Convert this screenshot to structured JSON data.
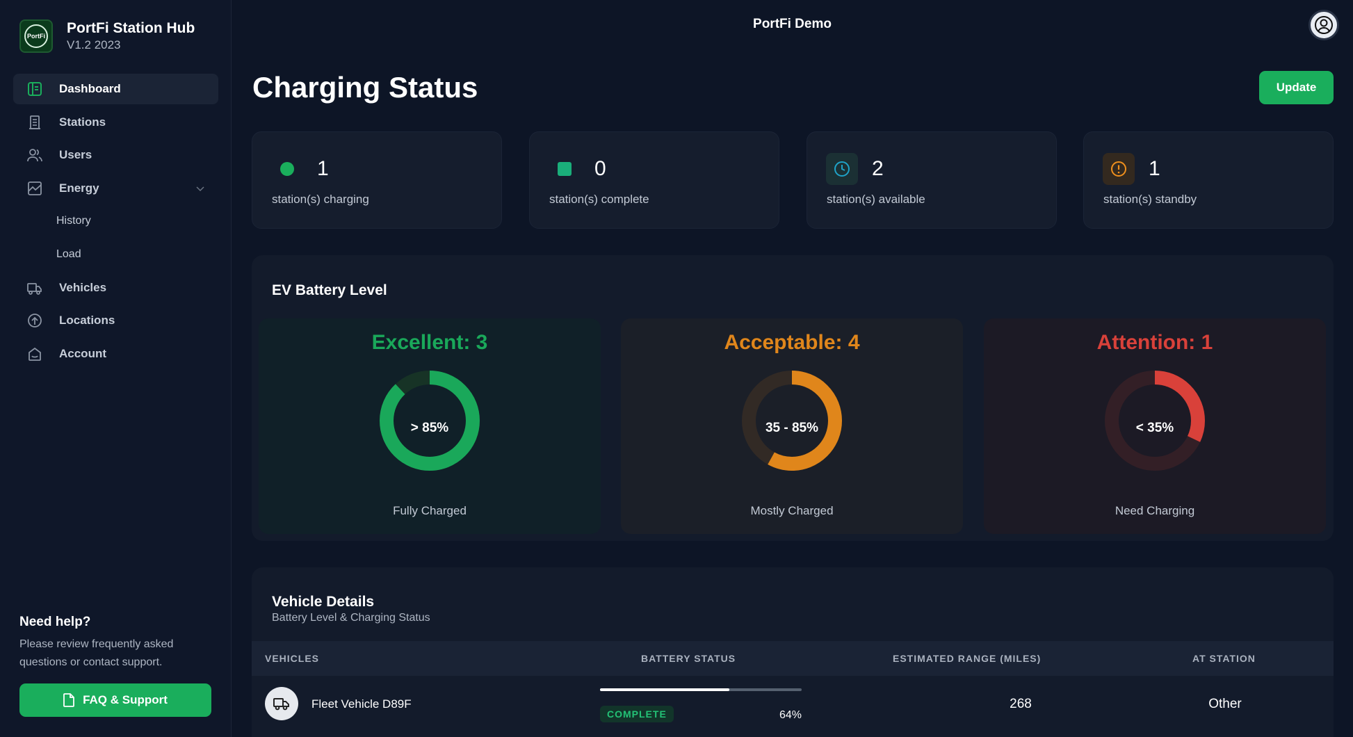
{
  "brand": {
    "title": "PortFi Station Hub",
    "version": "V1.2 2023",
    "logo_text": "PortFi"
  },
  "nav": {
    "dashboard": "Dashboard",
    "stations": "Stations",
    "users": "Users",
    "energy": "Energy",
    "history": "History",
    "load": "Load",
    "vehicles": "Vehicles",
    "locations": "Locations",
    "account": "Account"
  },
  "help": {
    "title": "Need help?",
    "text": "Please review frequently asked questions or contact support.",
    "button": "FAQ & Support"
  },
  "header": {
    "org": "PortFi Demo"
  },
  "page": {
    "title": "Charging Status",
    "update_label": "Update"
  },
  "stats": [
    {
      "value": "1",
      "label": "station(s) charging",
      "icon": "green-dot",
      "color": "#1aae5c"
    },
    {
      "value": "0",
      "label": "station(s) complete",
      "icon": "green-square",
      "color": "#1aae5c"
    },
    {
      "value": "2",
      "label": "station(s) available",
      "icon": "clock-icon",
      "color": "#1fa3c8"
    },
    {
      "value": "1",
      "label": "station(s) standby",
      "icon": "alert-icon",
      "color": "#f0901d"
    }
  ],
  "battery": {
    "title": "EV Battery Level",
    "cards": [
      {
        "title": "Excellent: 3",
        "range": "> 85%",
        "footer": "Fully Charged",
        "color": "#1aa85a",
        "fraction": 0.88
      },
      {
        "title": "Acceptable: 4",
        "range": "35 - 85%",
        "footer": "Mostly Charged",
        "color": "#e0861b",
        "fraction": 0.58
      },
      {
        "title": "Attention: 1",
        "range": "< 35%",
        "footer": "Need Charging",
        "color": "#d9413a",
        "fraction": 0.32
      }
    ]
  },
  "vehicles": {
    "title": "Vehicle Details",
    "subtitle": "Battery Level & Charging Status",
    "columns": [
      "VEHICLES",
      "BATTERY STATUS",
      "ESTIMATED RANGE (MILES)",
      "AT STATION"
    ],
    "rows": [
      {
        "name": "Fleet Vehicle D89F",
        "status": "COMPLETE",
        "battery_percent": "64%",
        "battery_fraction": 0.64,
        "range": "268",
        "station": "Other"
      }
    ]
  }
}
